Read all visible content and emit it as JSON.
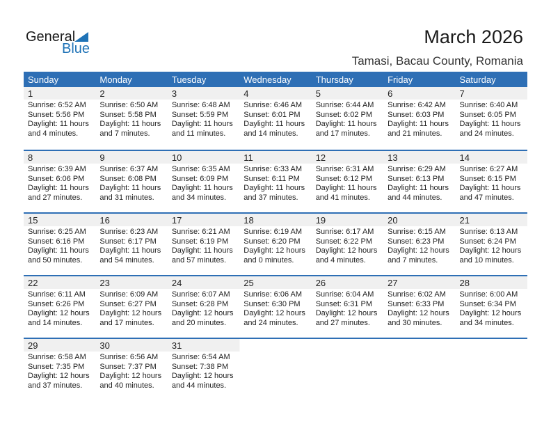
{
  "logo": {
    "text1": "General",
    "text2": "Blue"
  },
  "title": "March 2026",
  "location": "Tamasi, Bacau County, Romania",
  "colors": {
    "header": "#2e6fb5",
    "date_row": "#f0f0f0",
    "brand": "#1f73b7"
  },
  "weekdays": [
    "Sunday",
    "Monday",
    "Tuesday",
    "Wednesday",
    "Thursday",
    "Friday",
    "Saturday"
  ],
  "weeks": [
    [
      {
        "d": "1",
        "sr": "Sunrise: 6:52 AM",
        "ss": "Sunset: 5:56 PM",
        "dl": "Daylight: 11 hours",
        "dm": "and 4 minutes."
      },
      {
        "d": "2",
        "sr": "Sunrise: 6:50 AM",
        "ss": "Sunset: 5:58 PM",
        "dl": "Daylight: 11 hours",
        "dm": "and 7 minutes."
      },
      {
        "d": "3",
        "sr": "Sunrise: 6:48 AM",
        "ss": "Sunset: 5:59 PM",
        "dl": "Daylight: 11 hours",
        "dm": "and 11 minutes."
      },
      {
        "d": "4",
        "sr": "Sunrise: 6:46 AM",
        "ss": "Sunset: 6:01 PM",
        "dl": "Daylight: 11 hours",
        "dm": "and 14 minutes."
      },
      {
        "d": "5",
        "sr": "Sunrise: 6:44 AM",
        "ss": "Sunset: 6:02 PM",
        "dl": "Daylight: 11 hours",
        "dm": "and 17 minutes."
      },
      {
        "d": "6",
        "sr": "Sunrise: 6:42 AM",
        "ss": "Sunset: 6:03 PM",
        "dl": "Daylight: 11 hours",
        "dm": "and 21 minutes."
      },
      {
        "d": "7",
        "sr": "Sunrise: 6:40 AM",
        "ss": "Sunset: 6:05 PM",
        "dl": "Daylight: 11 hours",
        "dm": "and 24 minutes."
      }
    ],
    [
      {
        "d": "8",
        "sr": "Sunrise: 6:39 AM",
        "ss": "Sunset: 6:06 PM",
        "dl": "Daylight: 11 hours",
        "dm": "and 27 minutes."
      },
      {
        "d": "9",
        "sr": "Sunrise: 6:37 AM",
        "ss": "Sunset: 6:08 PM",
        "dl": "Daylight: 11 hours",
        "dm": "and 31 minutes."
      },
      {
        "d": "10",
        "sr": "Sunrise: 6:35 AM",
        "ss": "Sunset: 6:09 PM",
        "dl": "Daylight: 11 hours",
        "dm": "and 34 minutes."
      },
      {
        "d": "11",
        "sr": "Sunrise: 6:33 AM",
        "ss": "Sunset: 6:11 PM",
        "dl": "Daylight: 11 hours",
        "dm": "and 37 minutes."
      },
      {
        "d": "12",
        "sr": "Sunrise: 6:31 AM",
        "ss": "Sunset: 6:12 PM",
        "dl": "Daylight: 11 hours",
        "dm": "and 41 minutes."
      },
      {
        "d": "13",
        "sr": "Sunrise: 6:29 AM",
        "ss": "Sunset: 6:13 PM",
        "dl": "Daylight: 11 hours",
        "dm": "and 44 minutes."
      },
      {
        "d": "14",
        "sr": "Sunrise: 6:27 AM",
        "ss": "Sunset: 6:15 PM",
        "dl": "Daylight: 11 hours",
        "dm": "and 47 minutes."
      }
    ],
    [
      {
        "d": "15",
        "sr": "Sunrise: 6:25 AM",
        "ss": "Sunset: 6:16 PM",
        "dl": "Daylight: 11 hours",
        "dm": "and 50 minutes."
      },
      {
        "d": "16",
        "sr": "Sunrise: 6:23 AM",
        "ss": "Sunset: 6:17 PM",
        "dl": "Daylight: 11 hours",
        "dm": "and 54 minutes."
      },
      {
        "d": "17",
        "sr": "Sunrise: 6:21 AM",
        "ss": "Sunset: 6:19 PM",
        "dl": "Daylight: 11 hours",
        "dm": "and 57 minutes."
      },
      {
        "d": "18",
        "sr": "Sunrise: 6:19 AM",
        "ss": "Sunset: 6:20 PM",
        "dl": "Daylight: 12 hours",
        "dm": "and 0 minutes."
      },
      {
        "d": "19",
        "sr": "Sunrise: 6:17 AM",
        "ss": "Sunset: 6:22 PM",
        "dl": "Daylight: 12 hours",
        "dm": "and 4 minutes."
      },
      {
        "d": "20",
        "sr": "Sunrise: 6:15 AM",
        "ss": "Sunset: 6:23 PM",
        "dl": "Daylight: 12 hours",
        "dm": "and 7 minutes."
      },
      {
        "d": "21",
        "sr": "Sunrise: 6:13 AM",
        "ss": "Sunset: 6:24 PM",
        "dl": "Daylight: 12 hours",
        "dm": "and 10 minutes."
      }
    ],
    [
      {
        "d": "22",
        "sr": "Sunrise: 6:11 AM",
        "ss": "Sunset: 6:26 PM",
        "dl": "Daylight: 12 hours",
        "dm": "and 14 minutes."
      },
      {
        "d": "23",
        "sr": "Sunrise: 6:09 AM",
        "ss": "Sunset: 6:27 PM",
        "dl": "Daylight: 12 hours",
        "dm": "and 17 minutes."
      },
      {
        "d": "24",
        "sr": "Sunrise: 6:07 AM",
        "ss": "Sunset: 6:28 PM",
        "dl": "Daylight: 12 hours",
        "dm": "and 20 minutes."
      },
      {
        "d": "25",
        "sr": "Sunrise: 6:06 AM",
        "ss": "Sunset: 6:30 PM",
        "dl": "Daylight: 12 hours",
        "dm": "and 24 minutes."
      },
      {
        "d": "26",
        "sr": "Sunrise: 6:04 AM",
        "ss": "Sunset: 6:31 PM",
        "dl": "Daylight: 12 hours",
        "dm": "and 27 minutes."
      },
      {
        "d": "27",
        "sr": "Sunrise: 6:02 AM",
        "ss": "Sunset: 6:33 PM",
        "dl": "Daylight: 12 hours",
        "dm": "and 30 minutes."
      },
      {
        "d": "28",
        "sr": "Sunrise: 6:00 AM",
        "ss": "Sunset: 6:34 PM",
        "dl": "Daylight: 12 hours",
        "dm": "and 34 minutes."
      }
    ],
    [
      {
        "d": "29",
        "sr": "Sunrise: 6:58 AM",
        "ss": "Sunset: 7:35 PM",
        "dl": "Daylight: 12 hours",
        "dm": "and 37 minutes."
      },
      {
        "d": "30",
        "sr": "Sunrise: 6:56 AM",
        "ss": "Sunset: 7:37 PM",
        "dl": "Daylight: 12 hours",
        "dm": "and 40 minutes."
      },
      {
        "d": "31",
        "sr": "Sunrise: 6:54 AM",
        "ss": "Sunset: 7:38 PM",
        "dl": "Daylight: 12 hours",
        "dm": "and 44 minutes."
      }
    ]
  ]
}
